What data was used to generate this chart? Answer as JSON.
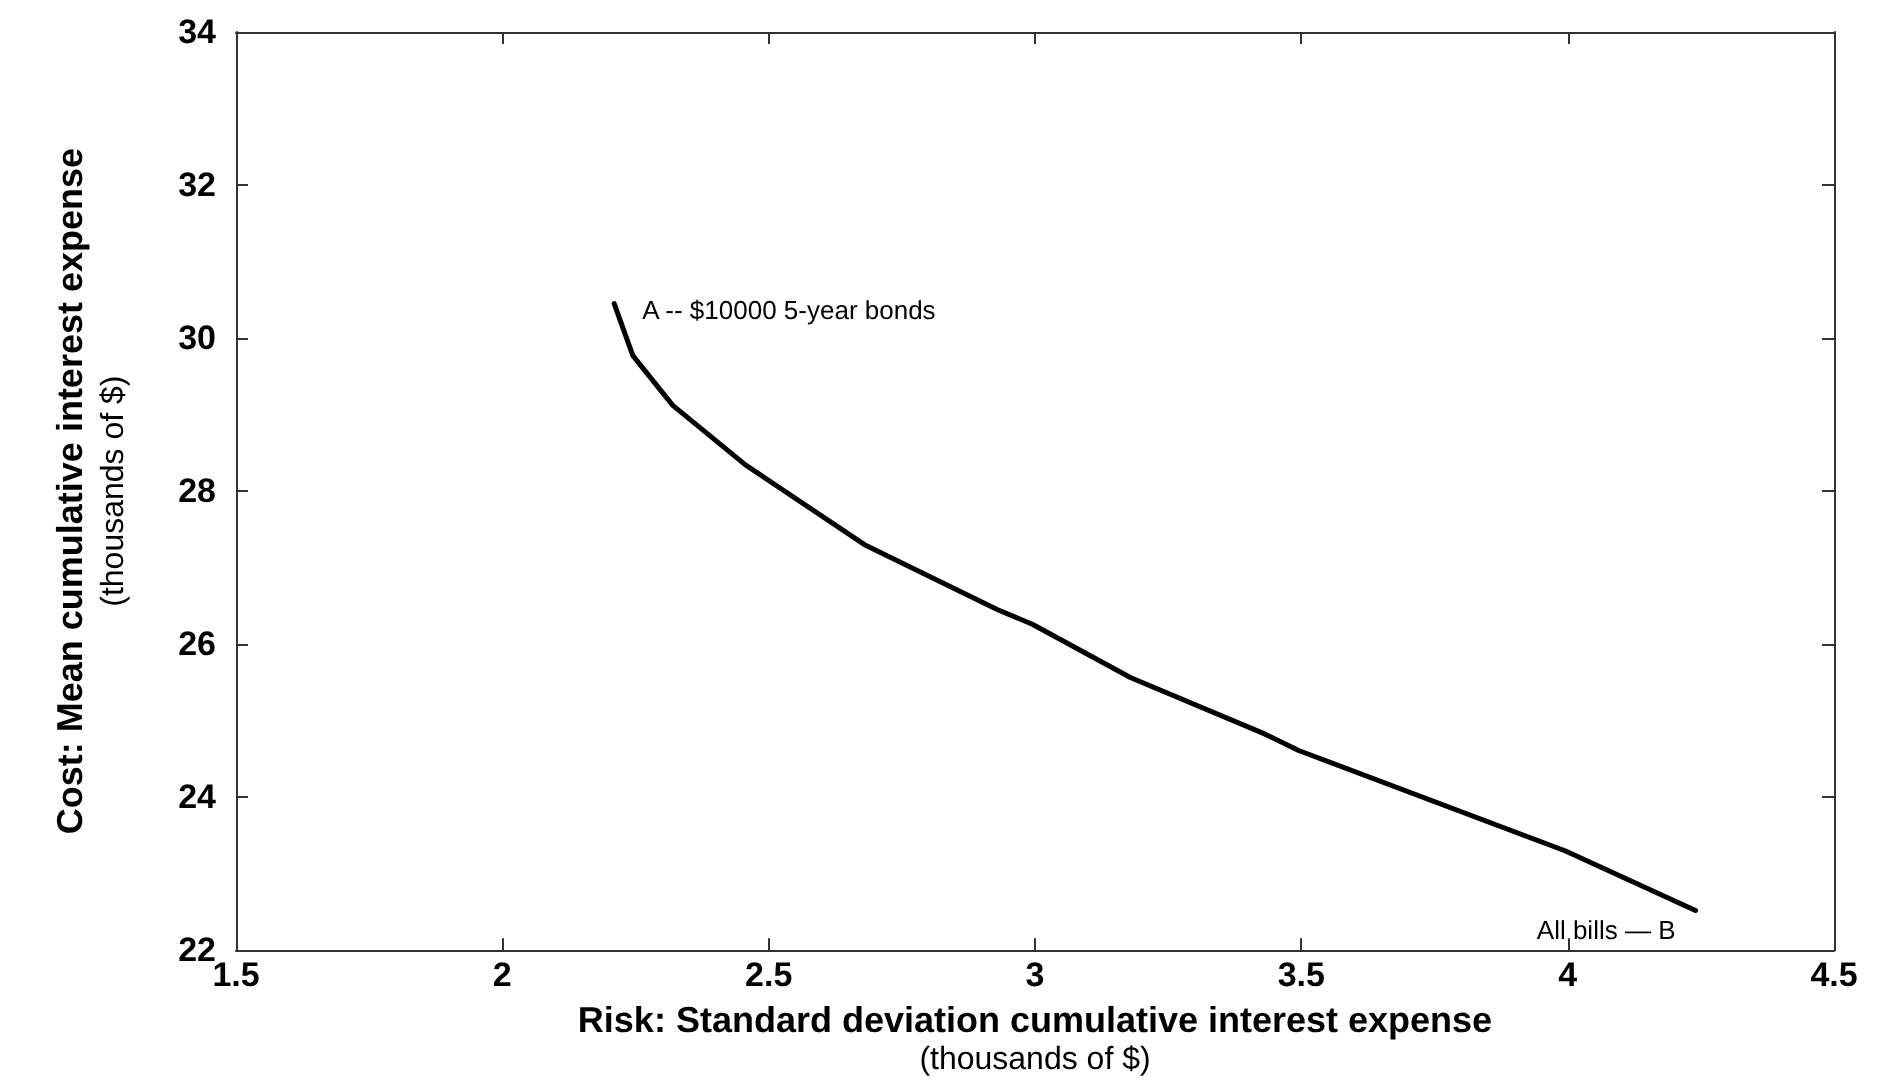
{
  "chart_data": {
    "type": "line",
    "xlabel": "Risk: Standard deviation cumulative interest expense\n(thousands of $)",
    "ylabel": "Cost: Mean cumulative interest expense\n(thousands of $)",
    "series": [
      {
        "color": "#000000",
        "x": [
          2.21,
          2.245,
          2.32,
          2.457,
          2.68,
          2.93,
          2.995,
          3.18,
          3.43,
          3.495,
          3.995,
          4.24
        ],
        "values": [
          30.45,
          29.77,
          29.12,
          28.34,
          27.3,
          26.45,
          26.26,
          25.56,
          24.83,
          24.61,
          23.3,
          22.52
        ]
      }
    ],
    "xlim": [
      1.5,
      4.5
    ],
    "xticks": [
      1.5,
      2,
      2.5,
      3,
      3.5,
      4,
      4.5
    ],
    "ylim": [
      22,
      34
    ],
    "yticks": [
      22,
      24,
      26,
      28,
      30,
      32,
      34
    ],
    "grid": false,
    "marker": "none",
    "line_style": "solid",
    "annotations": [
      {
        "text": "A -- $10000 5-year bonds",
        "x": 2.21,
        "y": 30.45
      },
      {
        "text": "All bills — B",
        "x": 4.24,
        "y": 22.52
      }
    ]
  }
}
